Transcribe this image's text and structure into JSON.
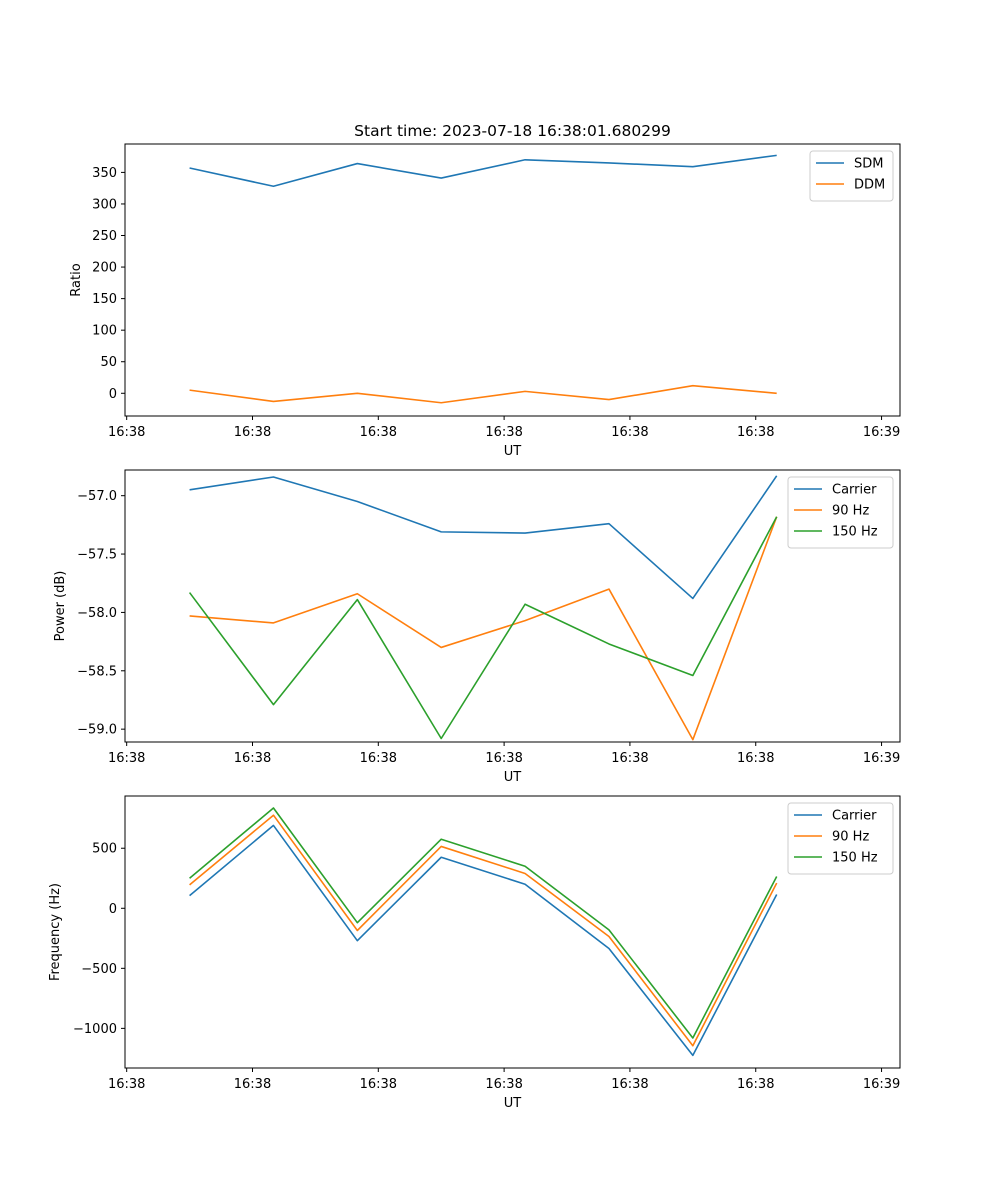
{
  "figure": {
    "title": "Start time: 2023-07-18 16:38:01.680299"
  },
  "colors": {
    "series": [
      "#1f77b4",
      "#ff7f0e",
      "#2ca02c"
    ]
  },
  "chart_data": [
    {
      "type": "line",
      "title": "Start time: 2023-07-18 16:38:01.680299",
      "xlabel": "UT",
      "ylabel": "Ratio",
      "x": [
        0,
        1,
        2,
        3,
        4,
        5,
        6,
        7
      ],
      "xlim": [
        -0.77,
        8.47
      ],
      "x_ticks": [
        -0.75,
        0.75,
        2.25,
        3.75,
        5.25,
        6.75,
        8.25
      ],
      "x_tick_labels": [
        "16:38",
        "16:38",
        "16:38",
        "16:38",
        "16:38",
        "16:38",
        "16:39"
      ],
      "ylim": [
        -36,
        395
      ],
      "y_ticks": [
        0,
        50,
        100,
        150,
        200,
        250,
        300,
        350
      ],
      "y_tick_labels": [
        "0",
        "50",
        "100",
        "150",
        "200",
        "250",
        "300",
        "350"
      ],
      "legend_position": "top-right",
      "series": [
        {
          "name": "SDM",
          "values": [
            357,
            328,
            364,
            341,
            370,
            365,
            359,
            377
          ]
        },
        {
          "name": "DDM",
          "values": [
            5,
            -13,
            0,
            -15,
            3,
            -10,
            12,
            0
          ]
        }
      ]
    },
    {
      "type": "line",
      "title": "",
      "xlabel": "UT",
      "ylabel": "Power (dB)",
      "x": [
        0,
        1,
        2,
        3,
        4,
        5,
        6,
        7
      ],
      "xlim": [
        -0.77,
        8.47
      ],
      "x_ticks": [
        -0.75,
        0.75,
        2.25,
        3.75,
        5.25,
        6.75,
        8.25
      ],
      "x_tick_labels": [
        "16:38",
        "16:38",
        "16:38",
        "16:38",
        "16:38",
        "16:38",
        "16:39"
      ],
      "ylim": [
        -59.11,
        -56.78
      ],
      "y_ticks": [
        -57.0,
        -57.5,
        -58.0,
        -58.5,
        -59.0
      ],
      "y_tick_labels": [
        "−57.0",
        "−57.5",
        "−58.0",
        "−58.5",
        "−59.0"
      ],
      "legend_position": "top-right",
      "series": [
        {
          "name": "Carrier",
          "values": [
            -56.95,
            -56.84,
            -57.05,
            -57.31,
            -57.32,
            -57.24,
            -57.88,
            -56.83
          ]
        },
        {
          "name": "90 Hz",
          "values": [
            -58.03,
            -58.09,
            -57.84,
            -58.3,
            -58.07,
            -57.8,
            -59.09,
            -57.18
          ]
        },
        {
          "name": "150 Hz",
          "values": [
            -57.83,
            -58.79,
            -57.89,
            -59.08,
            -57.93,
            -58.27,
            -58.54,
            -57.18
          ]
        }
      ]
    },
    {
      "type": "line",
      "title": "",
      "xlabel": "UT",
      "ylabel": "Frequency (Hz)",
      "x": [
        0,
        1,
        2,
        3,
        4,
        5,
        6,
        7
      ],
      "xlim": [
        -0.77,
        8.47
      ],
      "x_ticks": [
        -0.75,
        0.75,
        2.25,
        3.75,
        5.25,
        6.75,
        8.25
      ],
      "x_tick_labels": [
        "16:38",
        "16:38",
        "16:38",
        "16:38",
        "16:38",
        "16:38",
        "16:39"
      ],
      "ylim": [
        -1330,
        935
      ],
      "y_ticks": [
        500,
        0,
        -500,
        -1000
      ],
      "y_tick_labels": [
        "500",
        "0",
        "−500",
        "−1000"
      ],
      "legend_position": "top-right",
      "series": [
        {
          "name": "Carrier",
          "values": [
            105,
            690,
            -270,
            425,
            200,
            -335,
            -1225,
            115
          ]
        },
        {
          "name": "90 Hz",
          "values": [
            195,
            775,
            -185,
            515,
            290,
            -235,
            -1145,
            210
          ]
        },
        {
          "name": "150 Hz",
          "values": [
            250,
            835,
            -120,
            575,
            350,
            -180,
            -1080,
            265
          ]
        }
      ]
    }
  ]
}
